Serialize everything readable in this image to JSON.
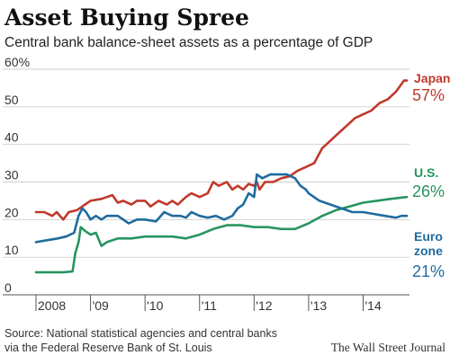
{
  "chart_data": {
    "type": "line",
    "title": "Asset Buying Spree",
    "subtitle": "Central bank balance-sheet assets as a percentage of GDP",
    "xlim": [
      2008.0,
      2014.85
    ],
    "ylim": [
      0,
      60
    ],
    "y_ticks": [
      0,
      10,
      20,
      30,
      40,
      50,
      60
    ],
    "y_tick_labels": [
      "0",
      "10",
      "20",
      "30",
      "40",
      "50",
      "60%"
    ],
    "x_ticks": [
      2008,
      2009,
      2010,
      2011,
      2012,
      2013,
      2014
    ],
    "x_tick_labels": [
      "2008",
      "'09",
      "'10",
      "'11",
      "'12",
      "'13",
      "'14"
    ],
    "grid": true,
    "legend": "inline-right",
    "source": [
      "Source: National statistical agencies and central banks",
      "via the Federal Reserve Bank of St. Louis"
    ],
    "credit": "The Wall Street Journal",
    "series": [
      {
        "name": "Japan",
        "end_label": "57%",
        "color": "#c0392b",
        "points": [
          [
            2008.0,
            22
          ],
          [
            2008.15,
            22
          ],
          [
            2008.3,
            21
          ],
          [
            2008.38,
            22
          ],
          [
            2008.5,
            20
          ],
          [
            2008.6,
            22
          ],
          [
            2008.75,
            22.5
          ],
          [
            2008.9,
            24
          ],
          [
            2009.0,
            25
          ],
          [
            2009.2,
            25.5
          ],
          [
            2009.4,
            26.5
          ],
          [
            2009.5,
            24.5
          ],
          [
            2009.6,
            25
          ],
          [
            2009.75,
            24
          ],
          [
            2009.85,
            25
          ],
          [
            2010.0,
            25
          ],
          [
            2010.1,
            23.5
          ],
          [
            2010.25,
            25
          ],
          [
            2010.4,
            24
          ],
          [
            2010.5,
            25
          ],
          [
            2010.6,
            24
          ],
          [
            2010.75,
            26
          ],
          [
            2010.85,
            27
          ],
          [
            2011.0,
            26
          ],
          [
            2011.15,
            27
          ],
          [
            2011.25,
            30
          ],
          [
            2011.35,
            29
          ],
          [
            2011.5,
            30
          ],
          [
            2011.6,
            28
          ],
          [
            2011.7,
            29
          ],
          [
            2011.8,
            28
          ],
          [
            2011.9,
            29.5
          ],
          [
            2012.0,
            29
          ],
          [
            2012.05,
            30
          ],
          [
            2012.1,
            28
          ],
          [
            2012.2,
            30
          ],
          [
            2012.35,
            30
          ],
          [
            2012.5,
            31
          ],
          [
            2012.65,
            31.5
          ],
          [
            2012.8,
            33
          ],
          [
            2012.95,
            34
          ],
          [
            2013.1,
            35
          ],
          [
            2013.25,
            39
          ],
          [
            2013.4,
            41
          ],
          [
            2013.55,
            43
          ],
          [
            2013.7,
            45
          ],
          [
            2013.85,
            47
          ],
          [
            2014.0,
            48
          ],
          [
            2014.15,
            49
          ],
          [
            2014.3,
            51
          ],
          [
            2014.45,
            52
          ],
          [
            2014.6,
            54
          ],
          [
            2014.75,
            57
          ],
          [
            2014.8,
            57
          ]
        ]
      },
      {
        "name": "U.S.",
        "end_label": "26%",
        "color": "#27955f",
        "points": [
          [
            2008.0,
            6
          ],
          [
            2008.5,
            6
          ],
          [
            2008.67,
            6.2
          ],
          [
            2008.72,
            11
          ],
          [
            2008.78,
            14
          ],
          [
            2008.82,
            18
          ],
          [
            2008.9,
            17
          ],
          [
            2009.0,
            16
          ],
          [
            2009.1,
            16.5
          ],
          [
            2009.2,
            13
          ],
          [
            2009.3,
            14
          ],
          [
            2009.5,
            15
          ],
          [
            2009.75,
            15
          ],
          [
            2010.0,
            15.5
          ],
          [
            2010.25,
            15.5
          ],
          [
            2010.5,
            15.5
          ],
          [
            2010.75,
            15
          ],
          [
            2011.0,
            16
          ],
          [
            2011.25,
            17.5
          ],
          [
            2011.5,
            18.5
          ],
          [
            2011.75,
            18.5
          ],
          [
            2012.0,
            18
          ],
          [
            2012.25,
            18
          ],
          [
            2012.5,
            17.5
          ],
          [
            2012.75,
            17.5
          ],
          [
            2013.0,
            19
          ],
          [
            2013.25,
            21
          ],
          [
            2013.5,
            22.5
          ],
          [
            2013.75,
            23.5
          ],
          [
            2014.0,
            24.5
          ],
          [
            2014.25,
            25
          ],
          [
            2014.5,
            25.5
          ],
          [
            2014.8,
            26
          ]
        ]
      },
      {
        "name": "Euro zone",
        "end_label": "21%",
        "color": "#1f6b9e",
        "points": [
          [
            2008.0,
            14
          ],
          [
            2008.2,
            14.5
          ],
          [
            2008.4,
            15
          ],
          [
            2008.55,
            15.5
          ],
          [
            2008.7,
            16.5
          ],
          [
            2008.78,
            21
          ],
          [
            2008.85,
            23
          ],
          [
            2008.92,
            22
          ],
          [
            2009.0,
            20
          ],
          [
            2009.1,
            21
          ],
          [
            2009.2,
            20
          ],
          [
            2009.3,
            21
          ],
          [
            2009.5,
            21
          ],
          [
            2009.7,
            19
          ],
          [
            2009.85,
            20
          ],
          [
            2010.0,
            20
          ],
          [
            2010.2,
            19.5
          ],
          [
            2010.35,
            22
          ],
          [
            2010.5,
            21
          ],
          [
            2010.65,
            21
          ],
          [
            2010.75,
            20.5
          ],
          [
            2010.85,
            22
          ],
          [
            2011.0,
            21
          ],
          [
            2011.15,
            20.5
          ],
          [
            2011.3,
            21
          ],
          [
            2011.45,
            20
          ],
          [
            2011.6,
            21
          ],
          [
            2011.7,
            23
          ],
          [
            2011.8,
            24
          ],
          [
            2011.9,
            27
          ],
          [
            2012.0,
            26
          ],
          [
            2012.05,
            32
          ],
          [
            2012.15,
            31
          ],
          [
            2012.3,
            32
          ],
          [
            2012.45,
            32
          ],
          [
            2012.6,
            32
          ],
          [
            2012.75,
            31
          ],
          [
            2012.85,
            29
          ],
          [
            2012.95,
            28
          ],
          [
            2013.0,
            27
          ],
          [
            2013.2,
            25
          ],
          [
            2013.4,
            24
          ],
          [
            2013.6,
            23
          ],
          [
            2013.8,
            22
          ],
          [
            2014.0,
            22
          ],
          [
            2014.2,
            21.5
          ],
          [
            2014.4,
            21
          ],
          [
            2014.6,
            20.5
          ],
          [
            2014.7,
            21
          ],
          [
            2014.8,
            21
          ]
        ]
      }
    ]
  }
}
